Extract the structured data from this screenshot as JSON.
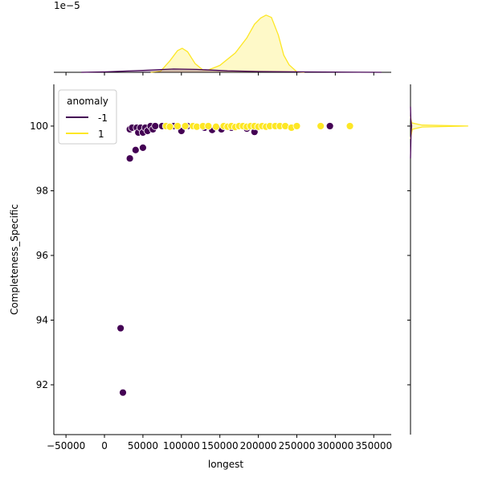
{
  "chart_data": {
    "type": "scatter",
    "xlabel": "longest",
    "ylabel": "Completeness_Specific",
    "xlim": [
      -65800,
      372700
    ],
    "ylim": [
      90.46,
      101.29
    ],
    "x_ticks": [
      "−50000",
      "0",
      "50000",
      "100000",
      "150000",
      "200000",
      "250000",
      "300000",
      "350000"
    ],
    "x_tick_values": [
      -50000,
      0,
      50000,
      100000,
      150000,
      200000,
      250000,
      300000,
      350000
    ],
    "y_ticks": [
      "92",
      "94",
      "96",
      "98",
      "100"
    ],
    "y_tick_values": [
      92,
      94,
      96,
      98,
      100
    ],
    "grid": false,
    "legend": {
      "title": "anomaly",
      "placement": "top-left",
      "entries": [
        "-1",
        "1"
      ]
    },
    "colors": {
      "-1": "#440154",
      "1": "#fde725"
    },
    "series": [
      {
        "name": "-1",
        "points": [
          [
            21000,
            93.75
          ],
          [
            24000,
            91.76
          ],
          [
            33000,
            99.0
          ],
          [
            40500,
            99.26
          ],
          [
            50000,
            99.33
          ],
          [
            33000,
            99.9
          ],
          [
            36000,
            99.95
          ],
          [
            42000,
            99.95
          ],
          [
            44000,
            99.8
          ],
          [
            47000,
            99.95
          ],
          [
            50000,
            99.8
          ],
          [
            53000,
            99.95
          ],
          [
            56000,
            99.85
          ],
          [
            60000,
            100
          ],
          [
            63000,
            99.9
          ],
          [
            66000,
            100
          ],
          [
            75000,
            100
          ],
          [
            90000,
            100
          ],
          [
            100000,
            99.85
          ],
          [
            108000,
            100
          ],
          [
            130000,
            99.95
          ],
          [
            140000,
            99.88
          ],
          [
            152000,
            99.9
          ],
          [
            165000,
            99.95
          ],
          [
            185000,
            99.92
          ],
          [
            195000,
            99.82
          ],
          [
            205000,
            100
          ],
          [
            293000,
            100
          ]
        ]
      },
      {
        "name": "1",
        "points": [
          [
            80000,
            100
          ],
          [
            85000,
            99.98
          ],
          [
            95000,
            100
          ],
          [
            105000,
            100
          ],
          [
            115000,
            100
          ],
          [
            120000,
            99.98
          ],
          [
            128000,
            100
          ],
          [
            135000,
            100
          ],
          [
            145000,
            99.98
          ],
          [
            155000,
            100
          ],
          [
            160000,
            99.98
          ],
          [
            165000,
            100
          ],
          [
            170000,
            99.97
          ],
          [
            175000,
            100
          ],
          [
            180000,
            100
          ],
          [
            185000,
            99.98
          ],
          [
            190000,
            100
          ],
          [
            195000,
            100
          ],
          [
            200000,
            99.98
          ],
          [
            205000,
            100
          ],
          [
            210000,
            99.98
          ],
          [
            215000,
            100
          ],
          [
            222000,
            100
          ],
          [
            228000,
            100
          ],
          [
            235000,
            100
          ],
          [
            243000,
            99.95
          ],
          [
            250000,
            100
          ],
          [
            281000,
            100
          ],
          [
            319000,
            100
          ]
        ]
      }
    ],
    "marginal_x": {
      "type": "area",
      "offset_label": "1e−5",
      "ylim": [
        0,
        0.63
      ],
      "series": [
        {
          "name": "1",
          "curve": [
            [
              60000,
              0
            ],
            [
              73000,
              0.012
            ],
            [
              85000,
              0.118
            ],
            [
              95000,
              0.224
            ],
            [
              101000,
              0.248
            ],
            [
              108000,
              0.212
            ],
            [
              118000,
              0.089
            ],
            [
              128000,
              0.024
            ],
            [
              135000,
              0.024
            ],
            [
              150000,
              0.071
            ],
            [
              170000,
              0.2
            ],
            [
              185000,
              0.354
            ],
            [
              195000,
              0.496
            ],
            [
              203000,
              0.56
            ],
            [
              210000,
              0.59
            ],
            [
              217000,
              0.566
            ],
            [
              226000,
              0.384
            ],
            [
              233000,
              0.177
            ],
            [
              240000,
              0.077
            ],
            [
              250000,
              0.005
            ],
            [
              260000,
              0
            ]
          ]
        },
        {
          "name": "-1",
          "curve": [
            [
              -30000,
              0
            ],
            [
              0,
              0.004
            ],
            [
              50000,
              0.02
            ],
            [
              90000,
              0.034
            ],
            [
              120000,
              0.03
            ],
            [
              160000,
              0.015
            ],
            [
              200000,
              0.008
            ],
            [
              260000,
              0.004
            ],
            [
              330000,
              0.001
            ],
            [
              360000,
              0
            ]
          ]
        }
      ]
    },
    "marginal_y": {
      "type": "area",
      "xlim": [
        0,
        1.1
      ],
      "series": [
        {
          "name": "1",
          "curve": [
            [
              99.6,
              0
            ],
            [
              99.9,
              0.03
            ],
            [
              99.97,
              0.2
            ],
            [
              100,
              1
            ],
            [
              100.03,
              0.2
            ],
            [
              100.1,
              0.02
            ],
            [
              100.3,
              0
            ]
          ]
        },
        {
          "name": "-1",
          "curve": [
            [
              99.0,
              0
            ],
            [
              99.8,
              0.01
            ],
            [
              100,
              0.02
            ],
            [
              100.2,
              0.005
            ],
            [
              100.6,
              0
            ]
          ]
        }
      ]
    }
  }
}
